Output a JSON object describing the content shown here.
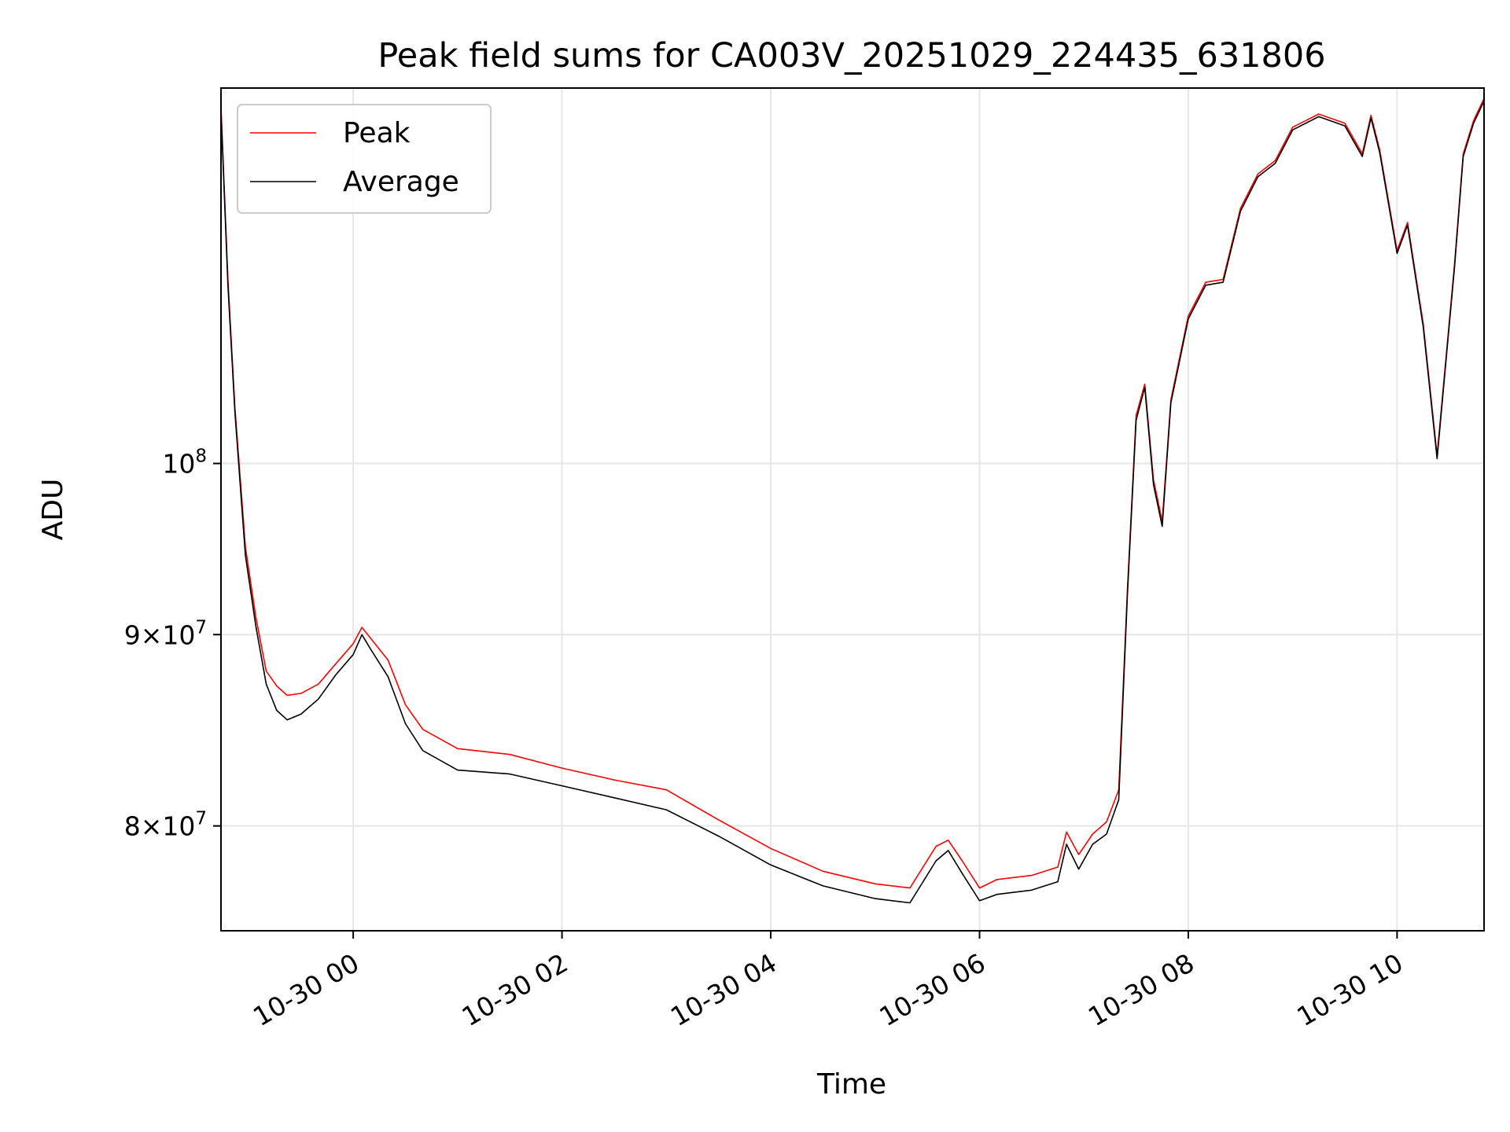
{
  "chart_data": {
    "type": "line",
    "title": "Peak field sums for CA003V_20251029_224435_631806",
    "xlabel": "Time",
    "ylabel": "ADU",
    "yscale": "log",
    "grid": true,
    "legend_position": "upper-left",
    "xlim": [
      "2025-10-29 22:44",
      "2025-10-30 10:50"
    ],
    "ylim": [
      75000000,
      126000000
    ],
    "x_ticks": [
      {
        "value": "2025-10-30 00:00",
        "label": "10-30 00"
      },
      {
        "value": "2025-10-30 02:00",
        "label": "10-30 02"
      },
      {
        "value": "2025-10-30 04:00",
        "label": "10-30 04"
      },
      {
        "value": "2025-10-30 06:00",
        "label": "10-30 06"
      },
      {
        "value": "2025-10-30 08:00",
        "label": "10-30 08"
      },
      {
        "value": "2025-10-30 10:00",
        "label": "10-30 10"
      }
    ],
    "y_ticks": [
      {
        "value": 80000000,
        "label": "8×10",
        "exp": "7"
      },
      {
        "value": 90000000,
        "label": "9×10",
        "exp": "7"
      },
      {
        "value": 100000000,
        "label": "10",
        "exp": "8"
      }
    ],
    "series": [
      {
        "name": "Peak",
        "color": "#ff0000",
        "x": [
          "2025-10-29 22:44",
          "2025-10-29 22:48",
          "2025-10-29 22:52",
          "2025-10-29 22:58",
          "2025-10-29 23:04",
          "2025-10-29 23:10",
          "2025-10-29 23:16",
          "2025-10-29 23:22",
          "2025-10-29 23:30",
          "2025-10-29 23:40",
          "2025-10-29 23:50",
          "2025-10-30 00:00",
          "2025-10-30 00:05",
          "2025-10-30 00:10",
          "2025-10-30 00:20",
          "2025-10-30 00:30",
          "2025-10-30 00:40",
          "2025-10-30 01:00",
          "2025-10-30 01:30",
          "2025-10-30 02:00",
          "2025-10-30 02:30",
          "2025-10-30 03:00",
          "2025-10-30 03:30",
          "2025-10-30 04:00",
          "2025-10-30 04:30",
          "2025-10-30 05:00",
          "2025-10-30 05:20",
          "2025-10-30 05:35",
          "2025-10-30 05:42",
          "2025-10-30 05:50",
          "2025-10-30 06:00",
          "2025-10-30 06:10",
          "2025-10-30 06:30",
          "2025-10-30 06:45",
          "2025-10-30 06:50",
          "2025-10-30 06:57",
          "2025-10-30 07:05",
          "2025-10-30 07:13",
          "2025-10-30 07:20",
          "2025-10-30 07:25",
          "2025-10-30 07:30",
          "2025-10-30 07:35",
          "2025-10-30 07:40",
          "2025-10-30 07:45",
          "2025-10-30 07:50",
          "2025-10-30 08:00",
          "2025-10-30 08:10",
          "2025-10-30 08:20",
          "2025-10-30 08:30",
          "2025-10-30 08:40",
          "2025-10-30 08:50",
          "2025-10-30 09:00",
          "2025-10-30 09:15",
          "2025-10-30 09:30",
          "2025-10-30 09:40",
          "2025-10-30 09:45",
          "2025-10-30 09:50",
          "2025-10-30 10:00",
          "2025-10-30 10:06",
          "2025-10-30 10:15",
          "2025-10-30 10:23",
          "2025-10-30 10:33",
          "2025-10-30 10:38",
          "2025-10-30 10:44",
          "2025-10-30 10:50"
        ],
        "y": [
          124500000,
          112000000,
          103500000,
          95000000,
          91000000,
          88000000,
          87200000,
          86700000,
          86800000,
          87300000,
          88400000,
          89500000,
          90400000,
          89800000,
          88600000,
          86200000,
          84900000,
          83900000,
          83600000,
          82900000,
          82300000,
          81800000,
          80300000,
          78900000,
          77800000,
          77200000,
          77000000,
          79000000,
          79300000,
          78300000,
          77000000,
          77400000,
          77600000,
          78000000,
          79700000,
          78600000,
          79600000,
          80200000,
          81800000,
          92500000,
          103000000,
          105000000,
          99000000,
          96500000,
          104000000,
          109500000,
          111800000,
          112000000,
          117000000,
          119500000,
          120500000,
          123000000,
          124000000,
          123300000,
          121000000,
          123900000,
          121300000,
          114000000,
          116000000,
          109000000,
          100500000,
          113000000,
          121000000,
          123500000,
          125200000
        ]
      },
      {
        "name": "Average",
        "color": "#000000",
        "x": [
          "2025-10-29 22:44",
          "2025-10-29 22:48",
          "2025-10-29 22:52",
          "2025-10-29 22:58",
          "2025-10-29 23:04",
          "2025-10-29 23:10",
          "2025-10-29 23:16",
          "2025-10-29 23:22",
          "2025-10-29 23:30",
          "2025-10-29 23:40",
          "2025-10-29 23:50",
          "2025-10-30 00:00",
          "2025-10-30 00:05",
          "2025-10-30 00:10",
          "2025-10-30 00:20",
          "2025-10-30 00:30",
          "2025-10-30 00:40",
          "2025-10-30 01:00",
          "2025-10-30 01:30",
          "2025-10-30 02:00",
          "2025-10-30 02:30",
          "2025-10-30 03:00",
          "2025-10-30 03:30",
          "2025-10-30 04:00",
          "2025-10-30 04:30",
          "2025-10-30 05:00",
          "2025-10-30 05:20",
          "2025-10-30 05:35",
          "2025-10-30 05:42",
          "2025-10-30 05:50",
          "2025-10-30 06:00",
          "2025-10-30 06:10",
          "2025-10-30 06:30",
          "2025-10-30 06:45",
          "2025-10-30 06:50",
          "2025-10-30 06:57",
          "2025-10-30 07:05",
          "2025-10-30 07:13",
          "2025-10-30 07:20",
          "2025-10-30 07:25",
          "2025-10-30 07:30",
          "2025-10-30 07:35",
          "2025-10-30 07:40",
          "2025-10-30 07:45",
          "2025-10-30 07:50",
          "2025-10-30 08:00",
          "2025-10-30 08:10",
          "2025-10-30 08:20",
          "2025-10-30 08:30",
          "2025-10-30 08:40",
          "2025-10-30 08:50",
          "2025-10-30 09:00",
          "2025-10-30 09:15",
          "2025-10-30 09:30",
          "2025-10-30 09:40",
          "2025-10-30 09:45",
          "2025-10-30 09:50",
          "2025-10-30 10:00",
          "2025-10-30 10:06",
          "2025-10-30 10:15",
          "2025-10-30 10:23",
          "2025-10-30 10:33",
          "2025-10-30 10:38",
          "2025-10-30 10:44",
          "2025-10-30 10:50"
        ],
        "y": [
          124300000,
          111600000,
          103200000,
          94500000,
          90500000,
          87300000,
          85900000,
          85400000,
          85700000,
          86500000,
          87800000,
          88900000,
          90000000,
          89200000,
          87700000,
          85200000,
          83800000,
          82800000,
          82600000,
          82000000,
          81400000,
          80800000,
          79500000,
          78100000,
          77100000,
          76500000,
          76300000,
          78300000,
          78800000,
          77700000,
          76400000,
          76700000,
          76900000,
          77300000,
          79100000,
          77900000,
          79100000,
          79600000,
          81300000,
          92200000,
          102700000,
          104800000,
          98700000,
          96200000,
          103800000,
          109300000,
          111600000,
          111800000,
          116800000,
          119300000,
          120300000,
          122800000,
          123800000,
          123100000,
          120800000,
          123700000,
          121100000,
          113800000,
          115800000,
          108800000,
          100300000,
          112800000,
          120800000,
          123300000,
          125000000
        ]
      }
    ]
  }
}
